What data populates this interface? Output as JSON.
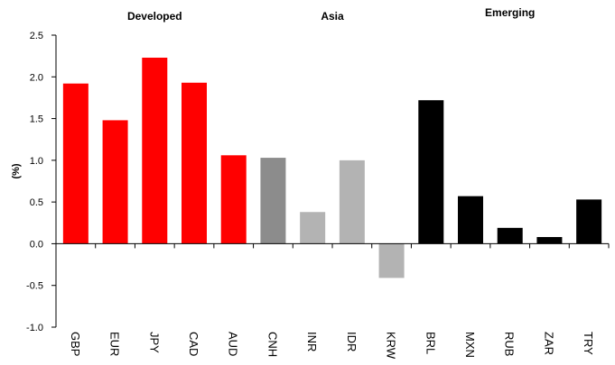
{
  "chart_data": {
    "type": "bar",
    "groups": [
      {
        "label": "Developed",
        "start": 0,
        "end": 4
      },
      {
        "label": "Asia",
        "start": 5,
        "end": 8
      },
      {
        "label": "Emerging",
        "start": 9,
        "end": 13
      }
    ],
    "categories": [
      "GBP",
      "EUR",
      "JPY",
      "CAD",
      "AUD",
      "CNH",
      "INR",
      "IDR",
      "KRW",
      "BRL",
      "MXN",
      "RUB",
      "ZAR",
      "TRY"
    ],
    "values": [
      1.92,
      1.48,
      2.23,
      1.93,
      1.06,
      1.03,
      0.38,
      1.0,
      -0.41,
      1.72,
      0.57,
      0.19,
      0.08,
      0.53
    ],
    "bar_colors": [
      "#ff0000",
      "#ff0000",
      "#ff0000",
      "#ff0000",
      "#ff0000",
      "#8c8c8c",
      "#b3b3b3",
      "#b3b3b3",
      "#b3b3b3",
      "#000000",
      "#000000",
      "#000000",
      "#000000",
      "#000000"
    ],
    "ylabel": "(%)",
    "xlabel": "",
    "ylim": [
      -1.0,
      2.5
    ],
    "yticks": [
      "2.5",
      "2.0",
      "1.5",
      "1.0",
      "0.5",
      "0.0",
      "-0.5",
      "-1.0"
    ],
    "ytick_values": [
      2.5,
      2.0,
      1.5,
      1.0,
      0.5,
      0.0,
      -0.5,
      -1.0
    ],
    "grid": false,
    "legend": "none"
  }
}
